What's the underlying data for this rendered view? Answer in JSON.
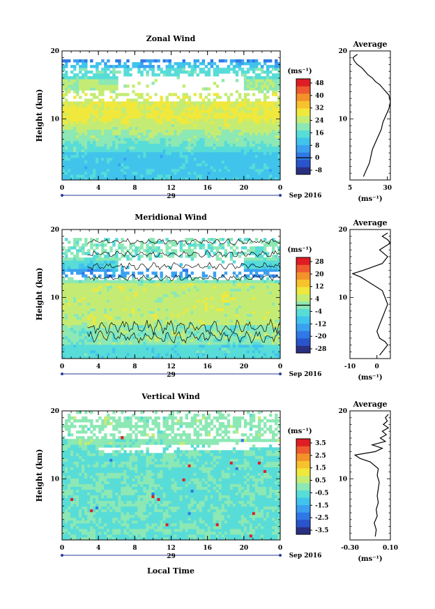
{
  "colors": {
    "zonal": [
      "#2b2f80",
      "#2a54cc",
      "#2f78e6",
      "#3aa0f0",
      "#40c4ec",
      "#58dcd8",
      "#8ce8b4",
      "#c4ec74",
      "#f0e83c",
      "#f8c22c",
      "#f4922a",
      "#ee5a2e",
      "#e01c24"
    ],
    "meridional": [
      "#2b2f80",
      "#2a54cc",
      "#2f78e6",
      "#3aa0f0",
      "#40c4ec",
      "#58dcd8",
      "#8ce8b4",
      "#c4ec74",
      "#f0e83c",
      "#f8c22c",
      "#f4922a",
      "#ee5a2e",
      "#e01c24"
    ],
    "vertical": [
      "#2b2f80",
      "#2a54cc",
      "#2f78e6",
      "#3aa0f0",
      "#40c4ec",
      "#58dcd8",
      "#8ce8b4",
      "#c4ec74",
      "#f0e83c",
      "#f8c22c",
      "#f4922a",
      "#ee5a2e",
      "#e01c24"
    ]
  },
  "chart_data": [
    {
      "type": "heatmap",
      "title": "Zonal Wind",
      "ylabel": "Height (km)",
      "xlim": [
        0,
        24
      ],
      "ylim": [
        1,
        20
      ],
      "x_ticks": [
        "0",
        "4",
        "8",
        "12",
        "16",
        "20",
        "0"
      ],
      "y_ticks": [
        "10",
        "20"
      ],
      "date_label": "29",
      "month_label": "Sep 2016",
      "colorbar": {
        "unit": "(ms⁻¹)",
        "ticks": [
          "48",
          "40",
          "32",
          "24",
          "16",
          "8",
          "0",
          "-8"
        ]
      },
      "profile": {
        "title": "Average",
        "xlim": [
          5,
          32
        ],
        "x_ticks": [
          "5",
          "30"
        ],
        "xlabel": "(ms⁻¹)",
        "height_km": [
          1.5,
          2.5,
          3.5,
          4.5,
          5.5,
          6.5,
          7.5,
          8.5,
          9.5,
          10.5,
          11.5,
          12.5,
          13.5,
          14.5,
          15,
          15.5,
          16,
          16.5,
          17,
          17.5,
          18,
          18.5,
          19,
          19.5
        ],
        "value": [
          14,
          16,
          18,
          19,
          20,
          22,
          24,
          26,
          27,
          29,
          31,
          32,
          31,
          27,
          25,
          22,
          20,
          17,
          15,
          13,
          10,
          8,
          7,
          10
        ]
      }
    },
    {
      "type": "heatmap",
      "title": "Meridional Wind",
      "ylabel": "Height (km)",
      "xlim": [
        0,
        24
      ],
      "ylim": [
        1,
        20
      ],
      "x_ticks": [
        "0",
        "4",
        "8",
        "12",
        "16",
        "20",
        "0"
      ],
      "y_ticks": [
        "10",
        "20"
      ],
      "date_label": "29",
      "month_label": "Sep 2016",
      "colorbar": {
        "unit": "(ms⁻¹)",
        "ticks": [
          "28",
          "20",
          "12",
          "4",
          "-4",
          "-12",
          "-20",
          "-28"
        ]
      },
      "profile": {
        "title": "Average",
        "xlim": [
          -10,
          5
        ],
        "x_ticks": [
          "-10",
          "0"
        ],
        "xlabel": "(ms⁻¹)",
        "height_km": [
          1.5,
          2.5,
          3,
          3.5,
          4,
          5,
          6,
          7,
          8,
          9,
          10,
          11,
          12,
          13,
          13.5,
          14,
          15,
          16,
          17,
          17.5,
          18,
          18.5,
          19,
          19.5
        ],
        "value": [
          1,
          3,
          4,
          3,
          1,
          0,
          1,
          2,
          3,
          4,
          3,
          2,
          -2,
          -6,
          -9,
          -5,
          2,
          4,
          1,
          3,
          5,
          4,
          2,
          4
        ]
      }
    },
    {
      "type": "heatmap",
      "title": "Vertical Wind",
      "ylabel": "Height (km)",
      "xlabel": "Local Time",
      "xlim": [
        0,
        24
      ],
      "ylim": [
        1,
        20
      ],
      "x_ticks": [
        "0",
        "4",
        "8",
        "12",
        "16",
        "20",
        "0"
      ],
      "y_ticks": [
        "10",
        "20"
      ],
      "date_label": "29",
      "month_label": "Sep 2016",
      "colorbar": {
        "unit": "(ms⁻¹)",
        "ticks": [
          "3.5",
          "2.5",
          "1.5",
          "0.5",
          "-0.5",
          "-1.5",
          "-2.5",
          "-3.5"
        ]
      },
      "profile": {
        "title": "Average",
        "xlim": [
          -0.3,
          0.1
        ],
        "x_ticks": [
          "-0.30",
          "0.10"
        ],
        "xlabel": "(ms⁻¹)",
        "height_km": [
          1.5,
          2.5,
          3.5,
          4.5,
          5.5,
          6.5,
          7.5,
          8.5,
          9.5,
          10.5,
          11.5,
          12.5,
          13,
          13.5,
          14,
          14.5,
          15,
          15.5,
          16,
          16.5,
          17,
          17.5,
          18,
          18.5,
          19,
          19.5
        ],
        "value": [
          -0.05,
          -0.04,
          -0.06,
          -0.03,
          -0.04,
          -0.02,
          -0.03,
          -0.02,
          -0.01,
          -0.03,
          -0.02,
          -0.1,
          -0.2,
          -0.25,
          -0.05,
          0.02,
          -0.08,
          0.05,
          0.0,
          0.06,
          0.02,
          0.08,
          0.03,
          0.07,
          0.05,
          0.08
        ]
      }
    }
  ]
}
